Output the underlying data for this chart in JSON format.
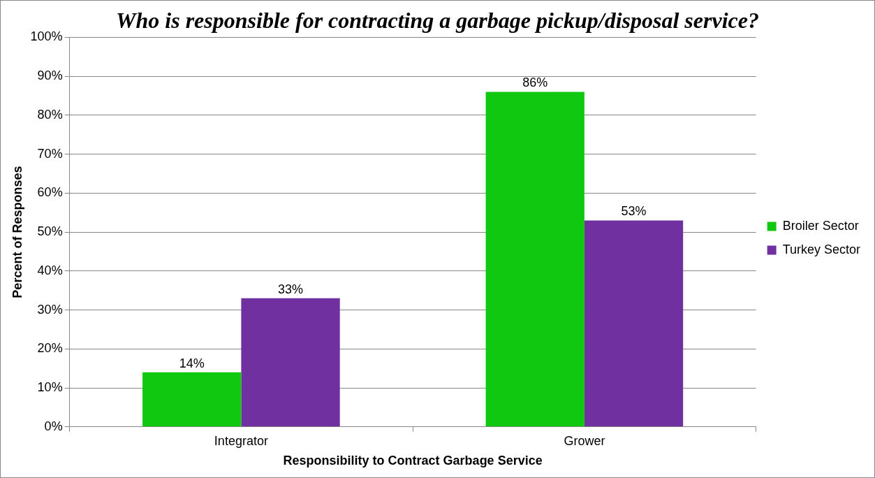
{
  "chart_data": {
    "type": "bar",
    "title": "Who is responsible for contracting a garbage pickup/disposal service?",
    "xlabel": "Responsibility to Contract Garbage Service",
    "ylabel": "Percent of Responses",
    "categories": [
      "Integrator",
      "Grower"
    ],
    "series": [
      {
        "name": "Broiler Sector",
        "color": "#0fc80f",
        "values": [
          14,
          86
        ],
        "value_labels": [
          "14%",
          "86%"
        ]
      },
      {
        "name": "Turkey Sector",
        "color": "#7030a0",
        "values": [
          33,
          53
        ],
        "value_labels": [
          "33%",
          "53%"
        ]
      }
    ],
    "ylim": [
      0,
      100
    ],
    "yticks": [
      {
        "value": 0,
        "label": "0%"
      },
      {
        "value": 10,
        "label": "10%"
      },
      {
        "value": 20,
        "label": "20%"
      },
      {
        "value": 30,
        "label": "30%"
      },
      {
        "value": 40,
        "label": "40%"
      },
      {
        "value": 50,
        "label": "50%"
      },
      {
        "value": 60,
        "label": "60%"
      },
      {
        "value": 70,
        "label": "70%"
      },
      {
        "value": 80,
        "label": "80%"
      },
      {
        "value": 90,
        "label": "90%"
      },
      {
        "value": 100,
        "label": "100%"
      }
    ],
    "grid": "y",
    "legend": "right"
  }
}
